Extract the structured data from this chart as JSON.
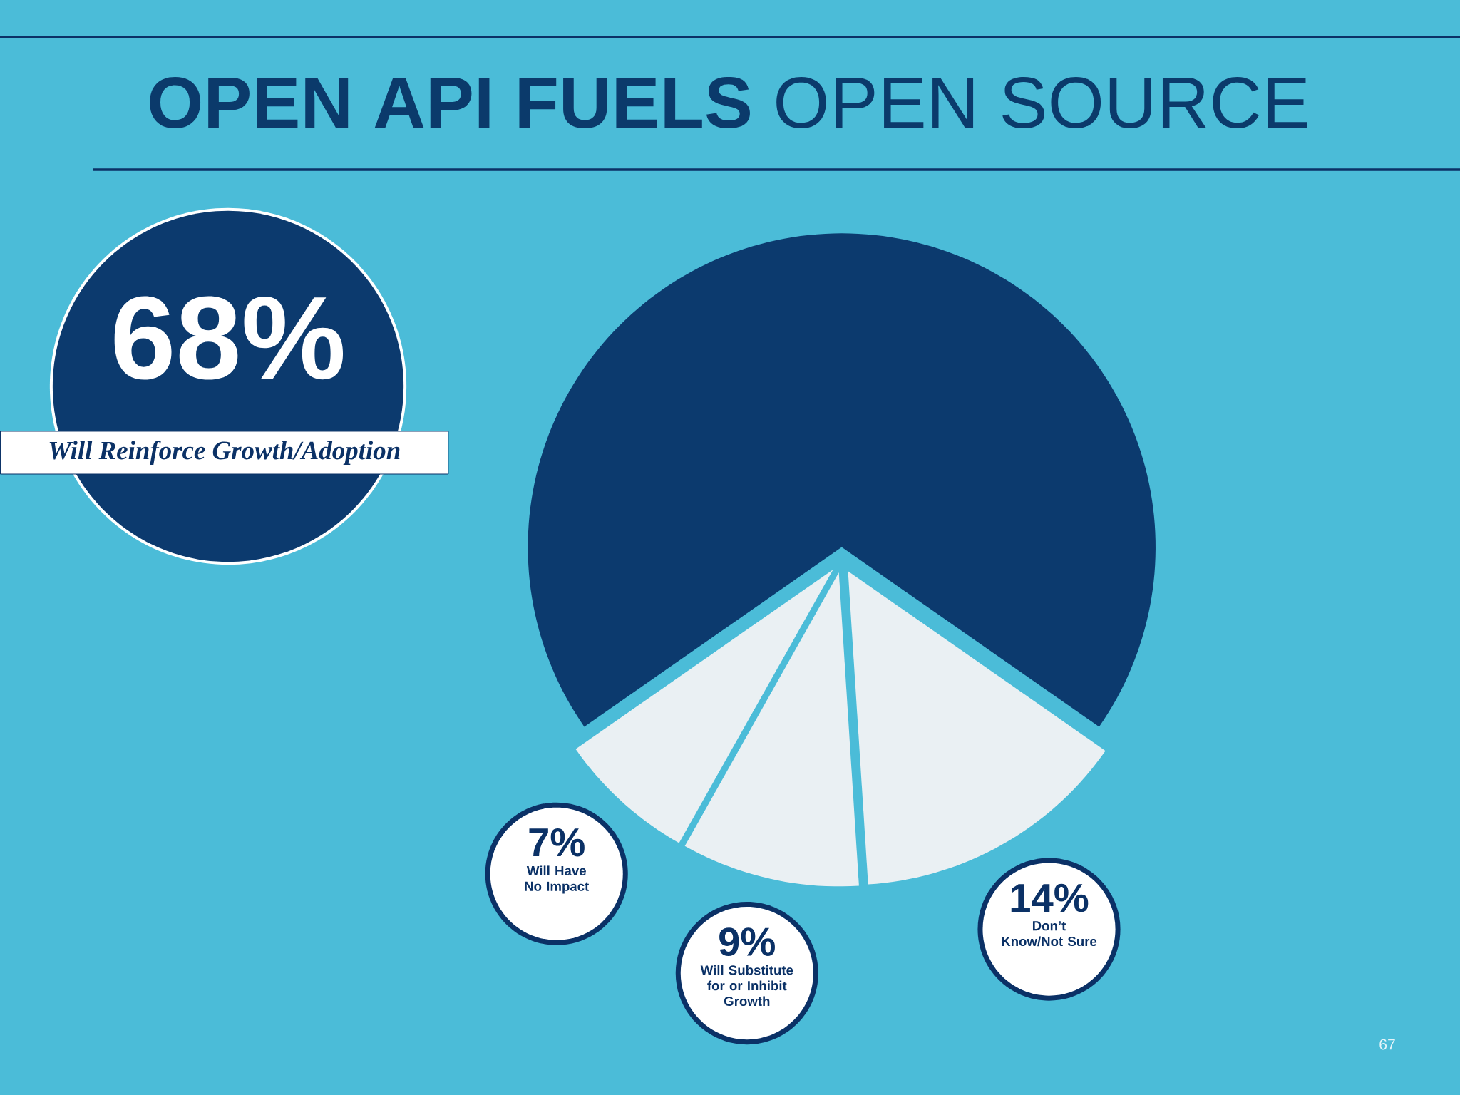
{
  "chart_data": {
    "type": "pie",
    "title": "**OPEN API FUELS** OPEN SOURCE",
    "categories": [
      "Will Reinforce Growth/Adoption",
      "Don’t Know/Not Sure",
      "Will Substitute for or Inhibit Growth",
      "Will Have No Impact"
    ],
    "values": [
      68,
      14,
      9,
      7
    ],
    "value_labels": [
      "68%",
      "14%",
      "9%",
      "7%"
    ],
    "colors": [
      "#0c3a6e",
      "#eaf0f3",
      "#eaf0f3",
      "#eaf0f3"
    ],
    "annotations": [
      "67"
    ]
  }
}
